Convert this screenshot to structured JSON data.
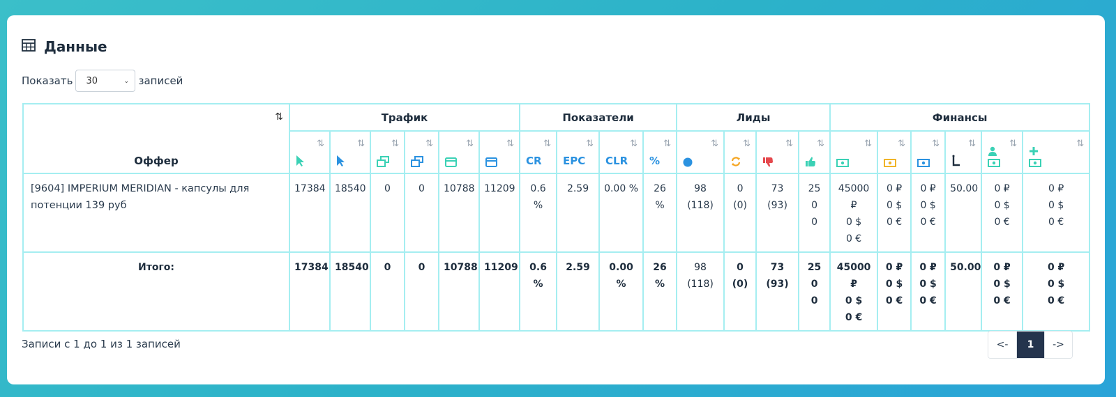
{
  "card": {
    "title": "Данные"
  },
  "length": {
    "prefix": "Показать",
    "value": "30",
    "suffix": "записей"
  },
  "table": {
    "sort_glyph": "⇅",
    "offer_header": "Оффер",
    "groups": {
      "traffic": "Трафик",
      "metrics": "Показатели",
      "leads": "Лиды",
      "finance": "Финансы"
    },
    "metric_labels": {
      "cr": "CR",
      "epc": "EPC",
      "clr": "CLR",
      "pct": "%"
    },
    "icons": {
      "c1": "cursor-arrow-teal-icon",
      "c2": "cursor-arrow-blue-icon",
      "c3": "windows-restore-teal-icon",
      "c4": "windows-restore-blue-icon",
      "c5": "browser-window-teal-icon",
      "c6": "browser-window-blue-icon",
      "l1": "circle-blue-icon",
      "l2": "refresh-orange-icon",
      "l3": "thumbs-down-red-icon",
      "l4": "thumbs-up-teal-icon",
      "f1": "money-bill-teal-icon",
      "f2": "money-bill-yellow-icon",
      "f3": "money-bill-blue-icon",
      "f4": "hourglass-l-icon",
      "f5": "user-money-icon",
      "f6": "plus-money-icon"
    },
    "row": {
      "offer": "[9604] IMPERIUM MERIDIAN - капсулы для потенции 139 руб",
      "c1": "17384",
      "c2": "18540",
      "c3": "0",
      "c4": "0",
      "c5": "10788",
      "c6": "11209",
      "cr": "0.6 %",
      "epc": "2.59",
      "clr": "0.00 %",
      "pct": "26 %",
      "l1": "98",
      "l1_sub": "(118)",
      "l2": "0 (0)",
      "l3": "73",
      "l3_sub": "(93)",
      "l4": [
        "25",
        "0",
        "0"
      ],
      "f1": [
        "45000 ₽",
        "0 $",
        "0 €"
      ],
      "f2": [
        "0 ₽",
        "0 $",
        "0 €"
      ],
      "f3": [
        "0 ₽",
        "0 $",
        "0 €"
      ],
      "f4": "50.00",
      "f5": [
        "0 ₽",
        "0 $",
        "0 €"
      ],
      "f6": [
        "0 ₽",
        "0 $",
        "0 €"
      ]
    },
    "total": {
      "label": "Итого:",
      "c1": "17384",
      "c2": "18540",
      "c3": "0",
      "c4": "0",
      "c5": "10788",
      "c6": "11209",
      "cr": "0.6 %",
      "epc": "2.59",
      "clr": "0.00 %",
      "pct": "26 %",
      "l1": "98",
      "l1_sub": "(118)",
      "l2": "0",
      "l2_sub": "(0)",
      "l3": "73",
      "l3_sub": "(93)",
      "l4": [
        "25",
        "0",
        "0"
      ],
      "f1": [
        "45000 ₽",
        "0 $",
        "0 €"
      ],
      "f2": [
        "0 ₽",
        "0 $",
        "0 €"
      ],
      "f3": [
        "0 ₽",
        "0 $",
        "0 €"
      ],
      "f4": "50.00",
      "f5": [
        "0 ₽",
        "0 $",
        "0 €"
      ],
      "f6": [
        "0 ₽",
        "0 $",
        "0 €"
      ]
    }
  },
  "footer": {
    "info": "Записи с 1 до 1 из 1 записей",
    "prev": "<-",
    "page": "1",
    "next": "->"
  },
  "colors": {
    "teal": "#3bd1b5",
    "blue": "#2b92e0",
    "orange": "#f5a623",
    "red": "#e5484d",
    "yellow": "#f0b429",
    "border": "#a5eef1",
    "active_page": "#24344d"
  }
}
